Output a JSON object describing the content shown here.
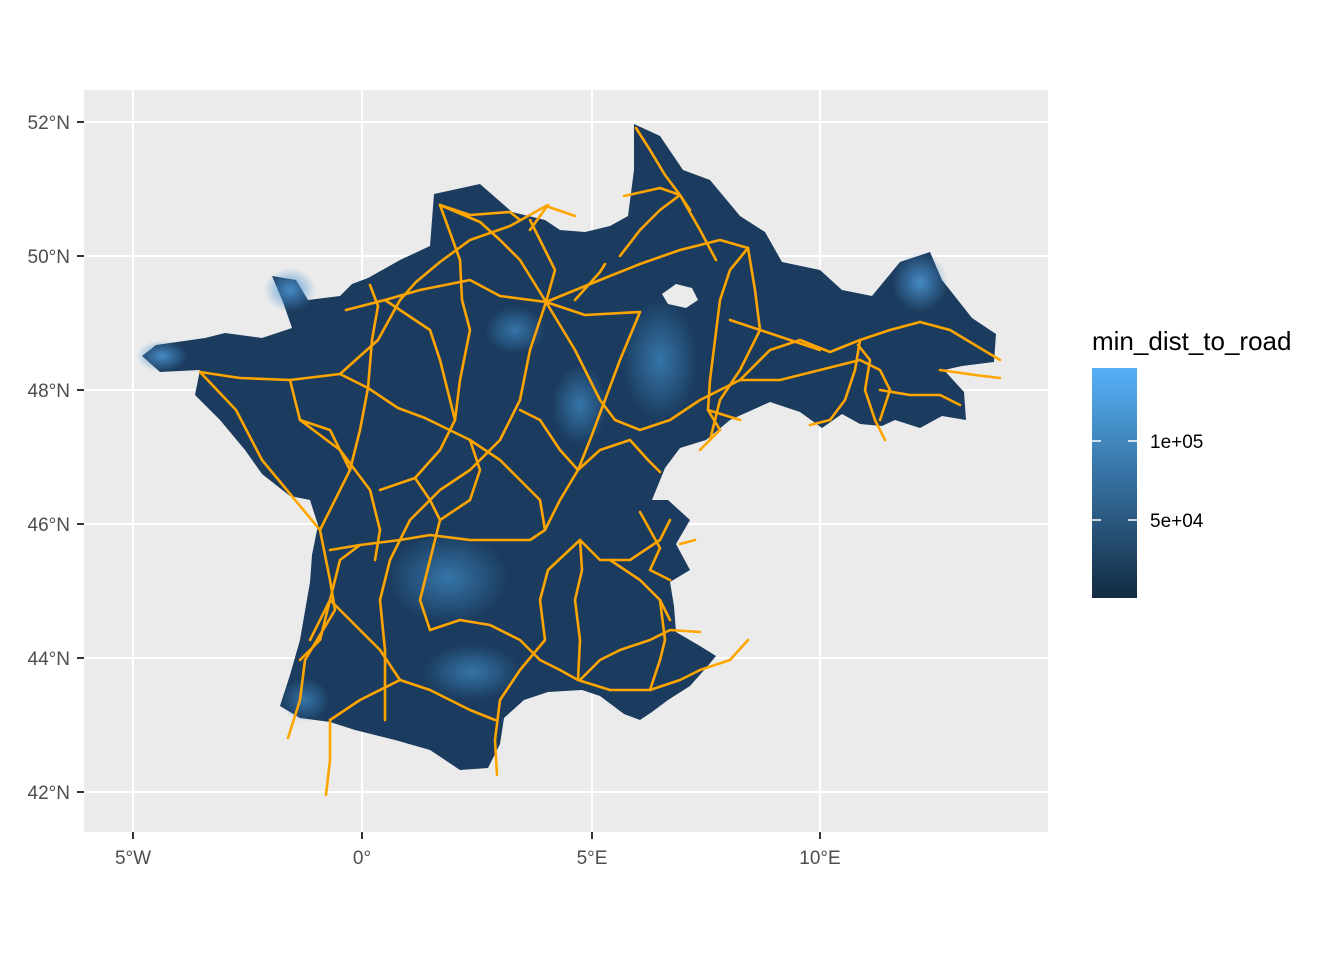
{
  "map": {
    "x_axis": {
      "ticks": [
        {
          "value": -5,
          "label": "5°W"
        },
        {
          "value": 0,
          "label": "0°"
        },
        {
          "value": 5,
          "label": "5°E"
        },
        {
          "value": 10,
          "label": "10°E"
        }
      ]
    },
    "y_axis": {
      "ticks": [
        {
          "value": 42,
          "label": "42°N"
        },
        {
          "value": 44,
          "label": "44°N"
        },
        {
          "value": 46,
          "label": "46°N"
        },
        {
          "value": 48,
          "label": "48°N"
        },
        {
          "value": 50,
          "label": "50°N"
        },
        {
          "value": 52,
          "label": "52°N"
        }
      ]
    },
    "extent": {
      "lon": [
        -6.1,
        14.9
      ],
      "lat": [
        41.45,
        52.5
      ]
    },
    "colors": {
      "panel_background": "#ebebeb",
      "grid": "#ffffff",
      "land_low": "#132b43",
      "land_high": "#56b1f7",
      "roads": "#ffa500"
    },
    "legend": {
      "title": "min_dist_to_road",
      "placement": "right",
      "color_low": "#132b43",
      "color_high": "#56b1f7",
      "labels": [
        {
          "value": 100000,
          "label": "1e+05"
        },
        {
          "value": 50000,
          "label": "5e+04"
        }
      ]
    }
  }
}
